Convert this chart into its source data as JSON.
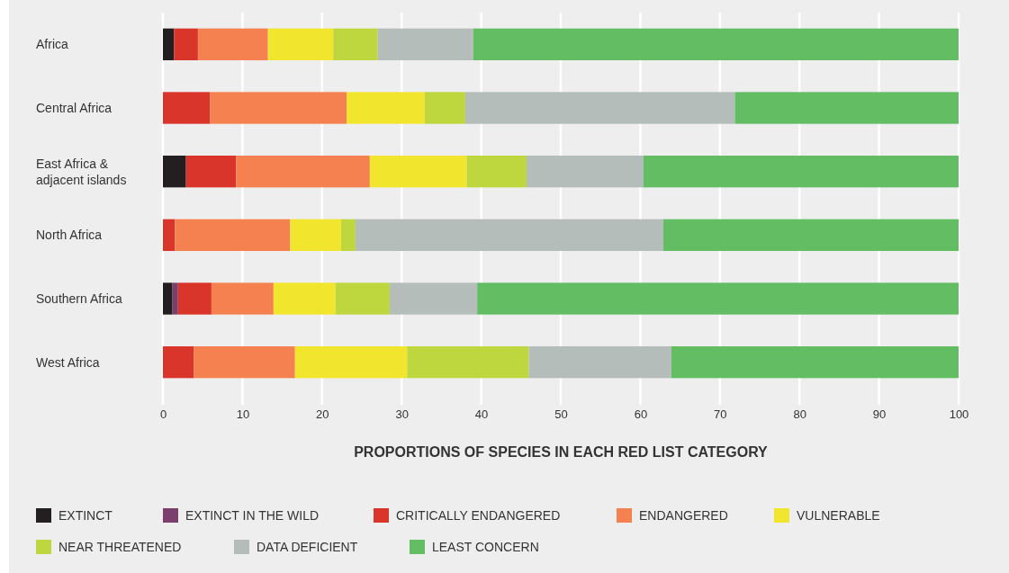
{
  "chart_data": {
    "type": "bar",
    "orientation": "horizontal",
    "stacked": true,
    "categories": [
      "Africa",
      "Central Africa",
      "East Africa & adjacent islands",
      "North Africa",
      "Southern Africa",
      "West Africa"
    ],
    "xlabel": "PROPORTIONS OF SPECIES IN EACH RED LIST CATEGORY",
    "xlim": [
      0,
      100
    ],
    "xticks": [
      0,
      10,
      20,
      30,
      40,
      50,
      60,
      70,
      80,
      90,
      100
    ],
    "grid": "x",
    "legend": "bottom",
    "series": [
      {
        "name": "EXTINCT",
        "color": "#231f20",
        "values": [
          1.4,
          0,
          2.9,
          0,
          1.2,
          0
        ]
      },
      {
        "name": "EXTINCT IN THE WILD",
        "color": "#7b3f6e",
        "values": [
          0,
          0,
          0,
          0,
          0.7,
          0
        ]
      },
      {
        "name": "CRITICALLY ENDANGERED",
        "color": "#d9352b",
        "values": [
          3.0,
          5.9,
          6.3,
          1.5,
          4.2,
          3.9
        ]
      },
      {
        "name": "ENDANGERED",
        "color": "#f58151",
        "values": [
          8.8,
          17.2,
          16.8,
          14.5,
          7.8,
          12.7
        ]
      },
      {
        "name": "VULNERABLE",
        "color": "#f2e52d",
        "values": [
          8.2,
          9.8,
          12.2,
          6.4,
          7.8,
          14.1
        ]
      },
      {
        "name": "NEAR THREATENED",
        "color": "#bfd73e",
        "values": [
          5.6,
          5.1,
          7.5,
          1.8,
          6.8,
          15.3
        ]
      },
      {
        "name": "DATA DEFICIENT",
        "color": "#b5bdbb",
        "values": [
          12.0,
          33.9,
          14.7,
          38.7,
          11.0,
          17.9
        ]
      },
      {
        "name": "LEAST CONCERN",
        "color": "#63bd63",
        "values": [
          61.0,
          28.1,
          39.6,
          37.1,
          60.5,
          36.1
        ]
      }
    ]
  }
}
